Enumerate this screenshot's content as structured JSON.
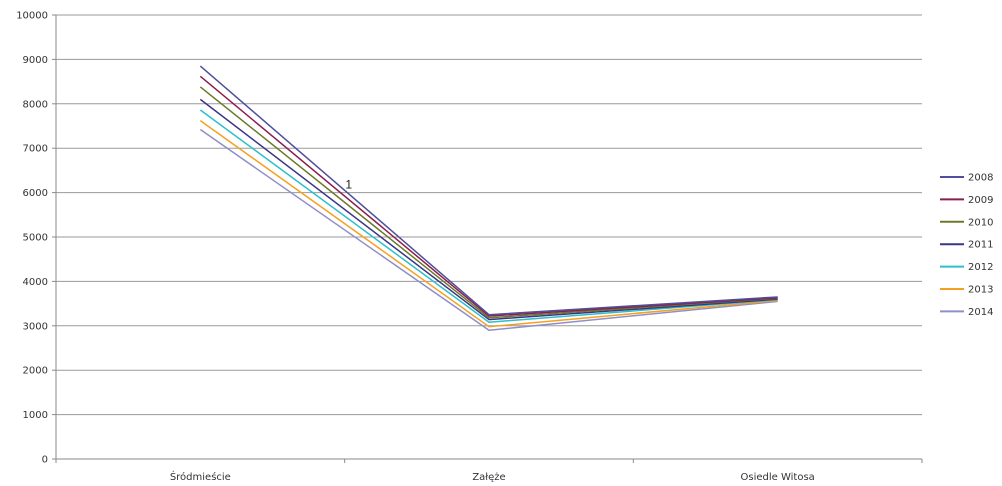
{
  "chart_data": {
    "type": "line",
    "categories": [
      "Śródmieście",
      "Załęże",
      "Osiedle Witosa"
    ],
    "ylim": [
      0,
      10000
    ],
    "yticks": [
      0,
      1000,
      2000,
      3000,
      4000,
      5000,
      6000,
      7000,
      8000,
      9000,
      10000
    ],
    "grid": true,
    "legend_position": "right",
    "annotation": "1",
    "series": [
      {
        "name": "2008",
        "color": "#4F4F9C",
        "values": [
          8850,
          3250,
          3650
        ]
      },
      {
        "name": "2009",
        "color": "#8B1E4E",
        "values": [
          8620,
          3220,
          3630
        ]
      },
      {
        "name": "2010",
        "color": "#6B7A2A",
        "values": [
          8380,
          3180,
          3620
        ]
      },
      {
        "name": "2011",
        "color": "#3A3585",
        "values": [
          8100,
          3140,
          3600
        ]
      },
      {
        "name": "2012",
        "color": "#2DBFCB",
        "values": [
          7860,
          3080,
          3590
        ]
      },
      {
        "name": "2013",
        "color": "#F5A020",
        "values": [
          7620,
          2980,
          3570
        ]
      },
      {
        "name": "2014",
        "color": "#8F8FC8",
        "values": [
          7420,
          2900,
          3550
        ]
      }
    ]
  }
}
